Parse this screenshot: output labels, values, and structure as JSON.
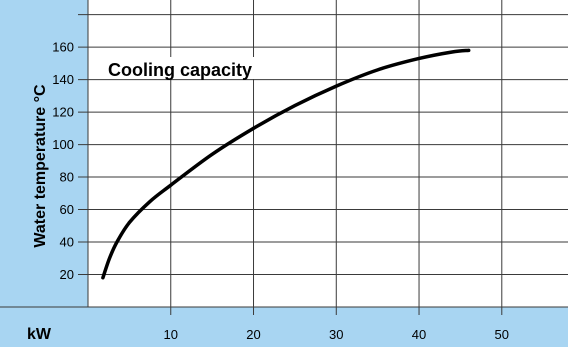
{
  "chart_data": {
    "type": "line",
    "title": "Cooling capacity",
    "xlabel": "kW",
    "ylabel": "Water temperature °C",
    "xlim": [
      0,
      58
    ],
    "ylim": [
      0,
      189
    ],
    "x_ticks": [
      10,
      20,
      30,
      40,
      50
    ],
    "y_ticks": [
      20,
      40,
      60,
      80,
      100,
      120,
      140,
      160
    ],
    "grid": true,
    "series": [
      {
        "x": [
          1.8,
          2.6,
          3.5,
          5,
          7.5,
          10,
          15,
          20,
          25,
          30,
          35,
          40,
          44,
          46
        ],
        "y": [
          18,
          30,
          40,
          52,
          65,
          75,
          94,
          110,
          124,
          136,
          146,
          153,
          157,
          158
        ],
        "color": "#000000"
      }
    ],
    "colors": {
      "frame": "#a8d5f2",
      "plot_background": "#ffffff",
      "grid": "#3a3a3a"
    }
  }
}
